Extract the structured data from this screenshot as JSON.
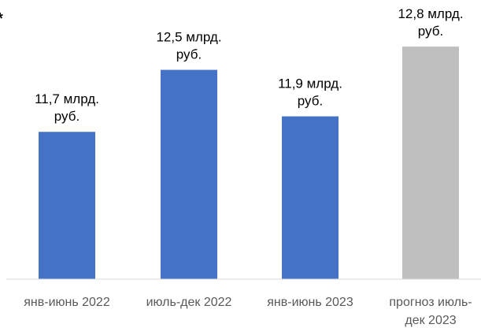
{
  "chart_data": {
    "type": "bar",
    "title": "",
    "xlabel": "",
    "ylabel": "",
    "ylim": [
      9.8,
      12.9
    ],
    "grid": false,
    "legend": "none",
    "categories": [
      "янв-июнь 2022",
      "июль-дек 2022",
      "янв-июнь 2023",
      "прогноз июль-дек 2023"
    ],
    "values": [
      11.7,
      12.5,
      11.9,
      12.8
    ],
    "bar_labels": [
      [
        "11,7 млрд.",
        "руб."
      ],
      [
        "12,5 млрд.",
        "руб."
      ],
      [
        "11,9 млрд.",
        "руб."
      ],
      [
        "12,8 млрд.",
        "руб."
      ]
    ],
    "category_lines": [
      [
        "янв-июнь 2022"
      ],
      [
        "июль-дек 2022"
      ],
      [
        "янв-июнь 2023"
      ],
      [
        "прогноз июль-",
        "дек 2023"
      ]
    ],
    "bar_colors": [
      "#4472c4",
      "#4472c4",
      "#4472c4",
      "#bfbfbf"
    ],
    "axis_color": "#d9d9d9",
    "footnote_marker": "*"
  }
}
